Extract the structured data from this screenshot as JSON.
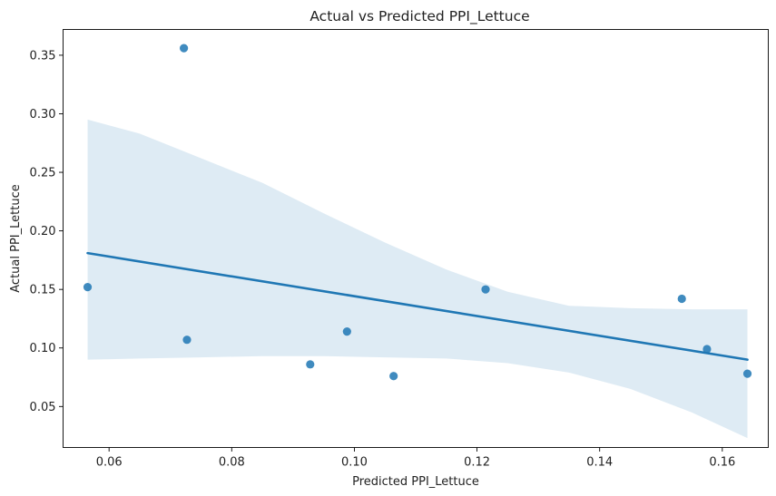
{
  "chart_data": {
    "type": "scatter",
    "title": "Actual vs Predicted PPI_Lettuce",
    "xlabel": "Predicted PPI_Lettuce",
    "ylabel": "Actual PPI_Lettuce",
    "xlim": [
      0.0525,
      0.1675
    ],
    "ylim": [
      0.015,
      0.372
    ],
    "xticks": [
      0.06,
      0.08,
      0.1,
      0.12,
      0.14,
      0.16
    ],
    "xtick_labels": [
      "0.06",
      "0.08",
      "0.10",
      "0.12",
      "0.14",
      "0.16"
    ],
    "yticks": [
      0.05,
      0.1,
      0.15,
      0.2,
      0.25,
      0.3,
      0.35
    ],
    "ytick_labels": [
      "0.05",
      "0.10",
      "0.15",
      "0.20",
      "0.25",
      "0.30",
      "0.35"
    ],
    "grid": false,
    "legend": "none",
    "point_color": "#1f77b4",
    "line_color": "#1f77b4",
    "band_color": "#1f77b4",
    "points": [
      {
        "x": 0.0565,
        "y": 0.152
      },
      {
        "x": 0.0722,
        "y": 0.356
      },
      {
        "x": 0.0727,
        "y": 0.107
      },
      {
        "x": 0.0928,
        "y": 0.086
      },
      {
        "x": 0.0988,
        "y": 0.114
      },
      {
        "x": 0.1064,
        "y": 0.076
      },
      {
        "x": 0.1214,
        "y": 0.15
      },
      {
        "x": 0.1534,
        "y": 0.142
      },
      {
        "x": 0.1575,
        "y": 0.099
      },
      {
        "x": 0.1641,
        "y": 0.078
      }
    ],
    "regression_line": {
      "x": [
        0.0565,
        0.1641
      ],
      "y": [
        0.181,
        0.09
      ]
    },
    "confidence_band": {
      "x": [
        0.0565,
        0.065,
        0.075,
        0.085,
        0.095,
        0.105,
        0.115,
        0.125,
        0.135,
        0.145,
        0.155,
        0.1641
      ],
      "upper": [
        0.295,
        0.283,
        0.262,
        0.241,
        0.215,
        0.19,
        0.167,
        0.148,
        0.136,
        0.134,
        0.133,
        0.133
      ],
      "lower": [
        0.09,
        0.091,
        0.092,
        0.093,
        0.093,
        0.092,
        0.091,
        0.087,
        0.079,
        0.065,
        0.045,
        0.023
      ]
    }
  }
}
